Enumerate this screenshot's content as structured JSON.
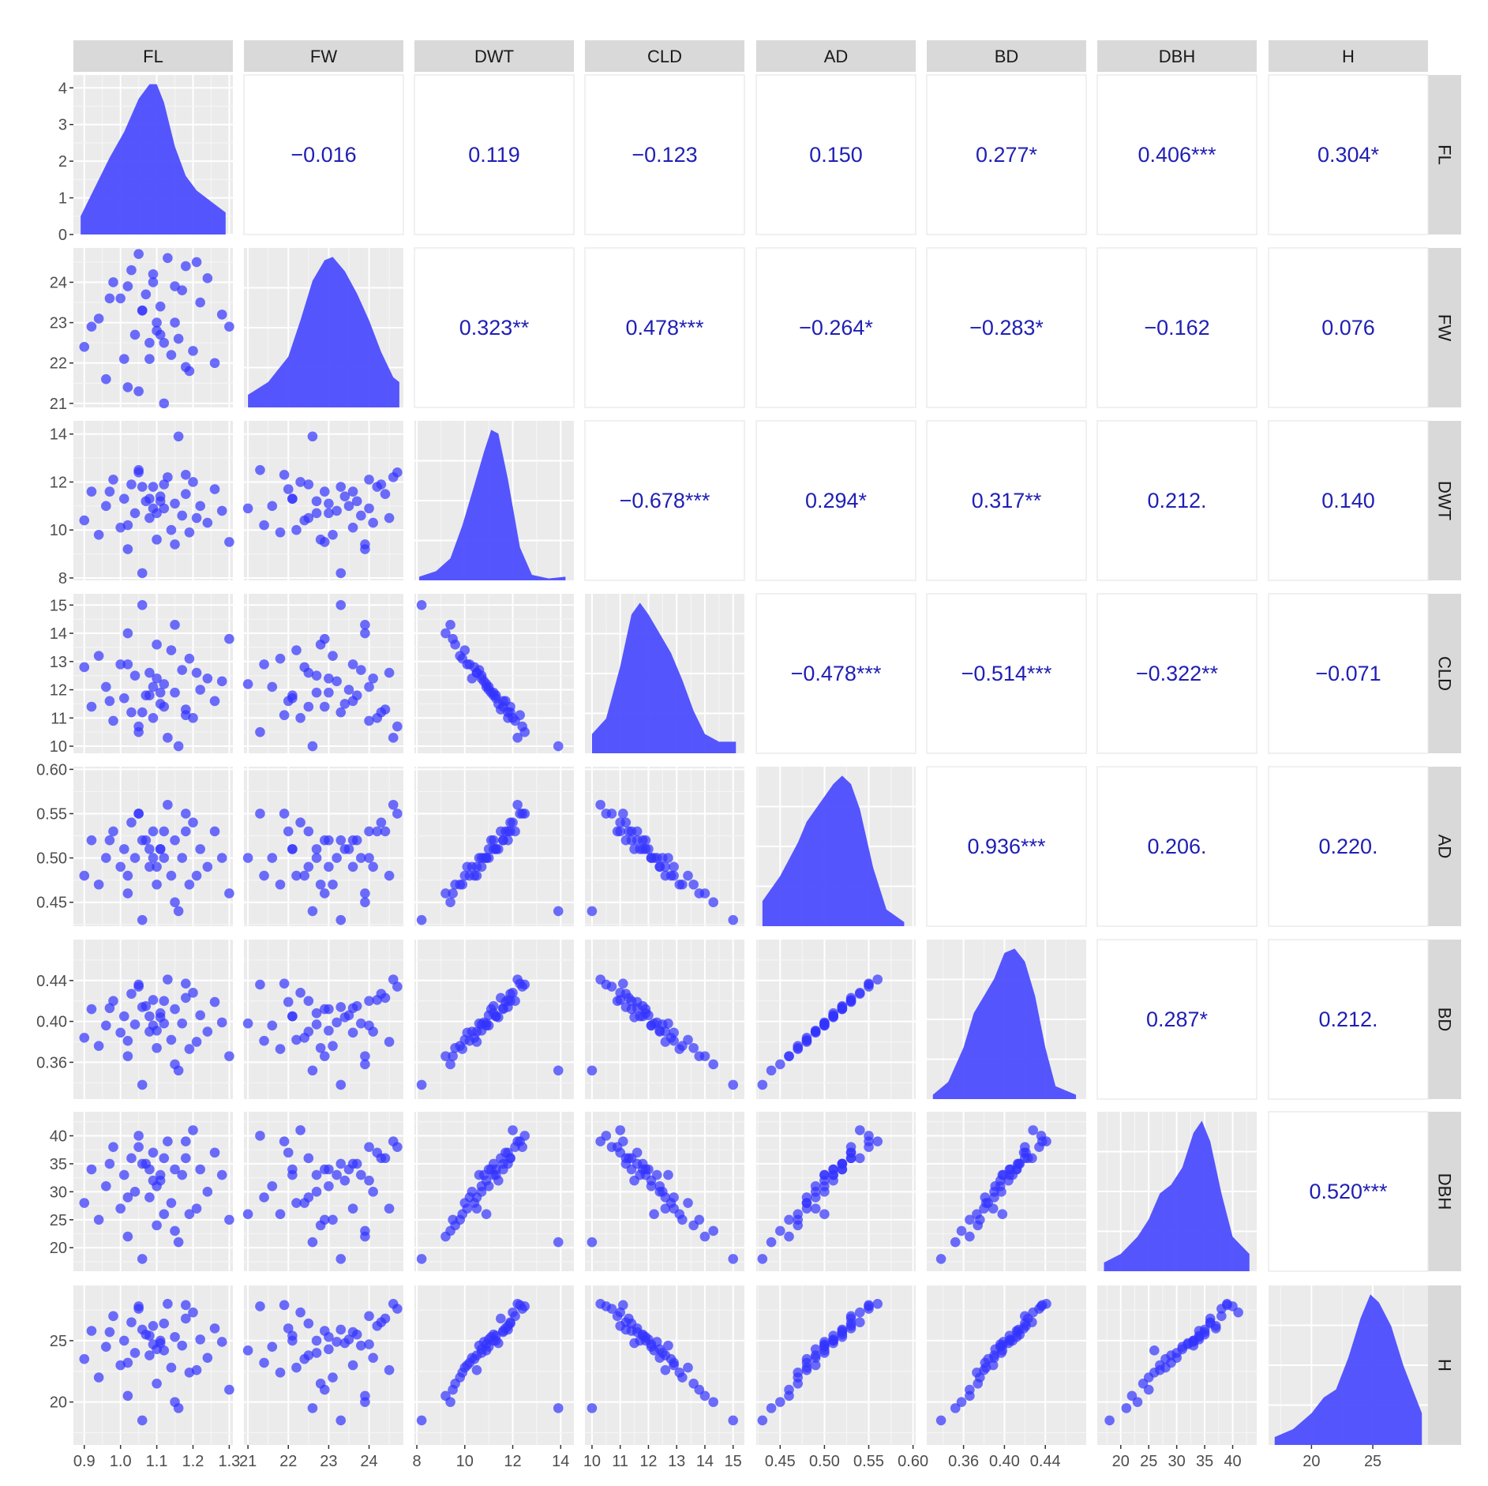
{
  "variables": [
    "FL",
    "FW",
    "DWT",
    "CLD",
    "AD",
    "BD",
    "DBH",
    "H"
  ],
  "colors": {
    "panel_bg": "#ebebeb",
    "grid_major": "#ffffff",
    "strip_bg": "#d9d9d9",
    "points": "#3333ff",
    "density_fill": "#4d4dff",
    "correlation_text": "#1f1fb4"
  },
  "chart_data": {
    "type": "scatter-matrix",
    "lower": "scatter",
    "diagonal": "density",
    "upper": "correlation",
    "axes": {
      "FL": {
        "lim": [
          0.87,
          1.31
        ],
        "ticks": [
          0.9,
          1.0,
          1.1,
          1.2,
          1.3
        ],
        "tick_labels": [
          "0.9",
          "1.0",
          "1.1",
          "1.2",
          "1.3"
        ]
      },
      "FW": {
        "lim": [
          20.9,
          24.85
        ],
        "ticks": [
          21,
          22,
          23,
          24
        ],
        "tick_labels": [
          "21",
          "22",
          "23",
          "24"
        ]
      },
      "DWT": {
        "lim": [
          7.9,
          14.55
        ],
        "ticks": [
          8,
          10,
          12,
          14
        ],
        "tick_labels": [
          "8",
          "10",
          "12",
          "14"
        ]
      },
      "CLD": {
        "lim": [
          9.75,
          15.4
        ],
        "ticks": [
          10,
          11,
          12,
          13,
          14,
          15
        ],
        "tick_labels": [
          "10",
          "11",
          "12",
          "13",
          "14",
          "15"
        ]
      },
      "AD": {
        "lim": [
          0.423,
          0.603
        ],
        "ticks": [
          0.45,
          0.5,
          0.55,
          0.6
        ],
        "tick_labels": [
          "0.45",
          "0.50",
          "0.55",
          "0.60"
        ]
      },
      "BD": {
        "lim": [
          0.324,
          0.48
        ],
        "ticks": [
          0.36,
          0.4,
          0.44
        ],
        "tick_labels": [
          "0.36",
          "0.40",
          "0.44"
        ]
      },
      "DBH": {
        "lim": [
          15.8,
          44.3
        ],
        "ticks": [
          20,
          25,
          30,
          35,
          40
        ],
        "tick_labels": [
          "20",
          "25",
          "30",
          "35",
          "40"
        ]
      },
      "H": {
        "lim": [
          16.5,
          29.5
        ],
        "ticks": [
          20,
          25
        ],
        "tick_labels": [
          "20",
          "25"
        ]
      }
    },
    "density_y_axis": {
      "lim": [
        0,
        4.35
      ],
      "ticks": [
        0,
        1,
        2,
        3,
        4
      ],
      "tick_labels": [
        "0",
        "1",
        "2",
        "3",
        "4"
      ]
    },
    "correlations": [
      {
        "row": "FL",
        "col": "FW",
        "label": "−0.016"
      },
      {
        "row": "FL",
        "col": "DWT",
        "label": "0.119"
      },
      {
        "row": "FL",
        "col": "CLD",
        "label": "−0.123"
      },
      {
        "row": "FL",
        "col": "AD",
        "label": "0.150"
      },
      {
        "row": "FL",
        "col": "BD",
        "label": "0.277*"
      },
      {
        "row": "FL",
        "col": "DBH",
        "label": "0.406***"
      },
      {
        "row": "FL",
        "col": "H",
        "label": "0.304*"
      },
      {
        "row": "FW",
        "col": "DWT",
        "label": "0.323**"
      },
      {
        "row": "FW",
        "col": "CLD",
        "label": "0.478***"
      },
      {
        "row": "FW",
        "col": "AD",
        "label": "−0.264*"
      },
      {
        "row": "FW",
        "col": "BD",
        "label": "−0.283*"
      },
      {
        "row": "FW",
        "col": "DBH",
        "label": "−0.162"
      },
      {
        "row": "FW",
        "col": "H",
        "label": "0.076"
      },
      {
        "row": "DWT",
        "col": "CLD",
        "label": "−0.678***"
      },
      {
        "row": "DWT",
        "col": "AD",
        "label": "0.294*"
      },
      {
        "row": "DWT",
        "col": "BD",
        "label": "0.317**"
      },
      {
        "row": "DWT",
        "col": "DBH",
        "label": "0.212."
      },
      {
        "row": "DWT",
        "col": "H",
        "label": "0.140"
      },
      {
        "row": "CLD",
        "col": "AD",
        "label": "−0.478***"
      },
      {
        "row": "CLD",
        "col": "BD",
        "label": "−0.514***"
      },
      {
        "row": "CLD",
        "col": "DBH",
        "label": "−0.322**"
      },
      {
        "row": "CLD",
        "col": "H",
        "label": "−0.071"
      },
      {
        "row": "AD",
        "col": "BD",
        "label": "0.936***"
      },
      {
        "row": "AD",
        "col": "DBH",
        "label": "0.206."
      },
      {
        "row": "AD",
        "col": "H",
        "label": "0.220."
      },
      {
        "row": "BD",
        "col": "DBH",
        "label": "0.287*"
      },
      {
        "row": "BD",
        "col": "H",
        "label": "0.212."
      },
      {
        "row": "DBH",
        "col": "H",
        "label": "0.520***"
      }
    ],
    "densities": {
      "FL": {
        "x": [
          0.89,
          0.93,
          0.97,
          1.01,
          1.05,
          1.08,
          1.1,
          1.12,
          1.15,
          1.18,
          1.21,
          1.25,
          1.29
        ],
        "y": [
          0.5,
          1.3,
          2.1,
          2.8,
          3.7,
          4.1,
          4.1,
          3.6,
          2.4,
          1.6,
          1.2,
          0.9,
          0.6
        ]
      },
      "FW": {
        "x": [
          21.0,
          21.5,
          22.0,
          22.3,
          22.6,
          22.9,
          23.1,
          23.4,
          23.7,
          24.0,
          24.3,
          24.6,
          24.75
        ],
        "y": [
          0.08,
          0.16,
          0.32,
          0.55,
          0.8,
          0.93,
          0.95,
          0.86,
          0.72,
          0.55,
          0.35,
          0.19,
          0.16
        ]
      },
      "DWT": {
        "x": [
          8.1,
          8.8,
          9.4,
          9.9,
          10.4,
          10.8,
          11.1,
          11.4,
          11.8,
          12.3,
          12.8,
          13.5,
          14.2
        ],
        "y": [
          0.02,
          0.05,
          0.12,
          0.3,
          0.52,
          0.7,
          0.82,
          0.8,
          0.55,
          0.18,
          0.03,
          0.01,
          0.02
        ]
      },
      "CLD": {
        "x": [
          10.0,
          10.5,
          11.0,
          11.4,
          11.7,
          12.0,
          12.4,
          12.8,
          13.2,
          13.6,
          14.0,
          14.5,
          15.1
        ],
        "y": [
          0.1,
          0.18,
          0.45,
          0.72,
          0.78,
          0.72,
          0.62,
          0.52,
          0.38,
          0.22,
          0.1,
          0.06,
          0.06
        ]
      },
      "AD": {
        "x": [
          0.43,
          0.45,
          0.47,
          0.48,
          0.49,
          0.5,
          0.51,
          0.52,
          0.53,
          0.54,
          0.555,
          0.57,
          0.59
        ],
        "y": [
          3.0,
          6.0,
          10.0,
          12.5,
          14.0,
          15.5,
          17.0,
          18.0,
          17.0,
          14.0,
          7.0,
          2.0,
          0.5
        ]
      },
      "BD": {
        "x": [
          0.33,
          0.345,
          0.36,
          0.37,
          0.38,
          0.39,
          0.4,
          0.41,
          0.42,
          0.43,
          0.44,
          0.45,
          0.47
        ],
        "y": [
          0.5,
          2.0,
          6.0,
          10.0,
          12.0,
          14.0,
          17.0,
          17.5,
          16.0,
          12.0,
          6.0,
          1.5,
          0.5
        ]
      },
      "DBH": {
        "x": [
          17.0,
          20.0,
          23.0,
          25.0,
          27.0,
          29.0,
          31.0,
          33.0,
          34.5,
          36.0,
          38.0,
          40.0,
          43.0
        ],
        "y": [
          0.005,
          0.01,
          0.02,
          0.03,
          0.045,
          0.05,
          0.06,
          0.08,
          0.087,
          0.075,
          0.045,
          0.02,
          0.01
        ]
      },
      "H": {
        "x": [
          17.0,
          18.5,
          20.0,
          21.0,
          22.0,
          23.0,
          24.0,
          24.8,
          25.5,
          26.5,
          27.5,
          28.5,
          29.0
        ],
        "y": [
          0.01,
          0.02,
          0.04,
          0.06,
          0.07,
          0.11,
          0.16,
          0.19,
          0.18,
          0.15,
          0.1,
          0.06,
          0.04
        ]
      }
    },
    "observations": {
      "FL": [
        0.9,
        0.92,
        0.94,
        0.96,
        0.98,
        1.0,
        1.01,
        1.02,
        1.03,
        1.04,
        1.05,
        1.06,
        1.07,
        1.08,
        1.09,
        1.1,
        1.11,
        1.12,
        1.13,
        1.14,
        1.15,
        1.16,
        1.17,
        1.18,
        1.19,
        1.2,
        1.22,
        1.24,
        1.26,
        1.28,
        1.3,
        0.97,
        1.02,
        1.05,
        1.08,
        1.1,
        1.12,
        1.15,
        1.18,
        1.21,
        1.11,
        1.06,
        1.09
      ],
      "FW": [
        22.4,
        22.9,
        23.1,
        21.6,
        24.0,
        23.6,
        22.1,
        23.9,
        24.3,
        22.7,
        21.3,
        23.3,
        23.7,
        22.5,
        24.2,
        22.8,
        23.4,
        21.0,
        24.6,
        22.2,
        23.0,
        22.6,
        23.8,
        24.4,
        21.8,
        22.3,
        23.5,
        24.1,
        22.0,
        23.2,
        22.9,
        23.6,
        21.4,
        24.7,
        22.1,
        23.0,
        22.5,
        23.9,
        21.9,
        24.5,
        22.7,
        23.3,
        24.0
      ],
      "DWT": [
        10.4,
        11.6,
        9.8,
        11.0,
        12.1,
        10.1,
        11.3,
        9.2,
        11.9,
        10.7,
        12.5,
        8.2,
        11.2,
        10.5,
        11.8,
        9.6,
        11.4,
        10.9,
        12.2,
        10.0,
        11.1,
        13.9,
        10.6,
        11.5,
        9.9,
        12.0,
        11.0,
        10.3,
        11.7,
        10.8,
        9.5,
        11.6,
        10.2,
        12.4,
        11.3,
        10.7,
        11.9,
        9.4,
        12.3,
        10.5,
        11.2,
        11.8,
        10.9
      ],
      "CLD": [
        12.8,
        11.4,
        13.2,
        12.1,
        10.9,
        12.9,
        11.7,
        14.0,
        11.2,
        12.5,
        10.5,
        15.0,
        11.8,
        12.6,
        11.0,
        13.6,
        11.5,
        12.2,
        10.3,
        13.4,
        11.9,
        10.0,
        12.7,
        11.3,
        13.1,
        11.0,
        12.0,
        12.4,
        11.6,
        12.3,
        13.8,
        11.6,
        12.9,
        10.7,
        11.8,
        12.4,
        11.4,
        14.3,
        11.1,
        12.6,
        11.9,
        11.2,
        12.1
      ],
      "AD": [
        0.48,
        0.52,
        0.47,
        0.5,
        0.53,
        0.49,
        0.51,
        0.46,
        0.54,
        0.5,
        0.55,
        0.43,
        0.52,
        0.49,
        0.53,
        0.47,
        0.51,
        0.5,
        0.56,
        0.48,
        0.52,
        0.44,
        0.5,
        0.53,
        0.47,
        0.54,
        0.51,
        0.49,
        0.53,
        0.5,
        0.46,
        0.52,
        0.48,
        0.55,
        0.51,
        0.49,
        0.53,
        0.45,
        0.55,
        0.48,
        0.51,
        0.52,
        0.5
      ],
      "BD": [
        0.384,
        0.412,
        0.376,
        0.396,
        0.42,
        0.389,
        0.405,
        0.366,
        0.427,
        0.397,
        0.436,
        0.338,
        0.415,
        0.39,
        0.421,
        0.374,
        0.404,
        0.398,
        0.441,
        0.382,
        0.412,
        0.352,
        0.398,
        0.423,
        0.373,
        0.428,
        0.406,
        0.39,
        0.419,
        0.399,
        0.366,
        0.413,
        0.381,
        0.434,
        0.405,
        0.391,
        0.42,
        0.358,
        0.437,
        0.38,
        0.408,
        0.414,
        0.396
      ],
      "DBH": [
        28.0,
        34.0,
        25.0,
        31.0,
        38.0,
        27.0,
        33.0,
        22.0,
        36.0,
        30.0,
        40.0,
        18.0,
        35.0,
        29.0,
        37.0,
        24.0,
        32.0,
        26.0,
        39.0,
        28.0,
        34.0,
        21.0,
        33.0,
        36.0,
        26.0,
        41.0,
        34.0,
        30.0,
        37.0,
        33.0,
        25.0,
        35.0,
        29.0,
        38.0,
        34.0,
        31.0,
        36.0,
        23.0,
        39.0,
        27.0,
        33.0,
        35.0,
        32.0
      ],
      "H": [
        23.5,
        25.8,
        22.0,
        24.5,
        27.0,
        23.0,
        25.0,
        20.5,
        26.5,
        24.0,
        27.8,
        18.5,
        25.5,
        23.8,
        26.2,
        21.5,
        24.8,
        24.2,
        28.0,
        22.8,
        25.3,
        19.5,
        24.6,
        26.8,
        22.4,
        27.3,
        25.1,
        23.6,
        26.0,
        24.9,
        21.0,
        25.7,
        23.2,
        27.6,
        25.4,
        24.3,
        26.4,
        20.0,
        27.9,
        22.6,
        25.0,
        25.9,
        24.7
      ]
    }
  }
}
